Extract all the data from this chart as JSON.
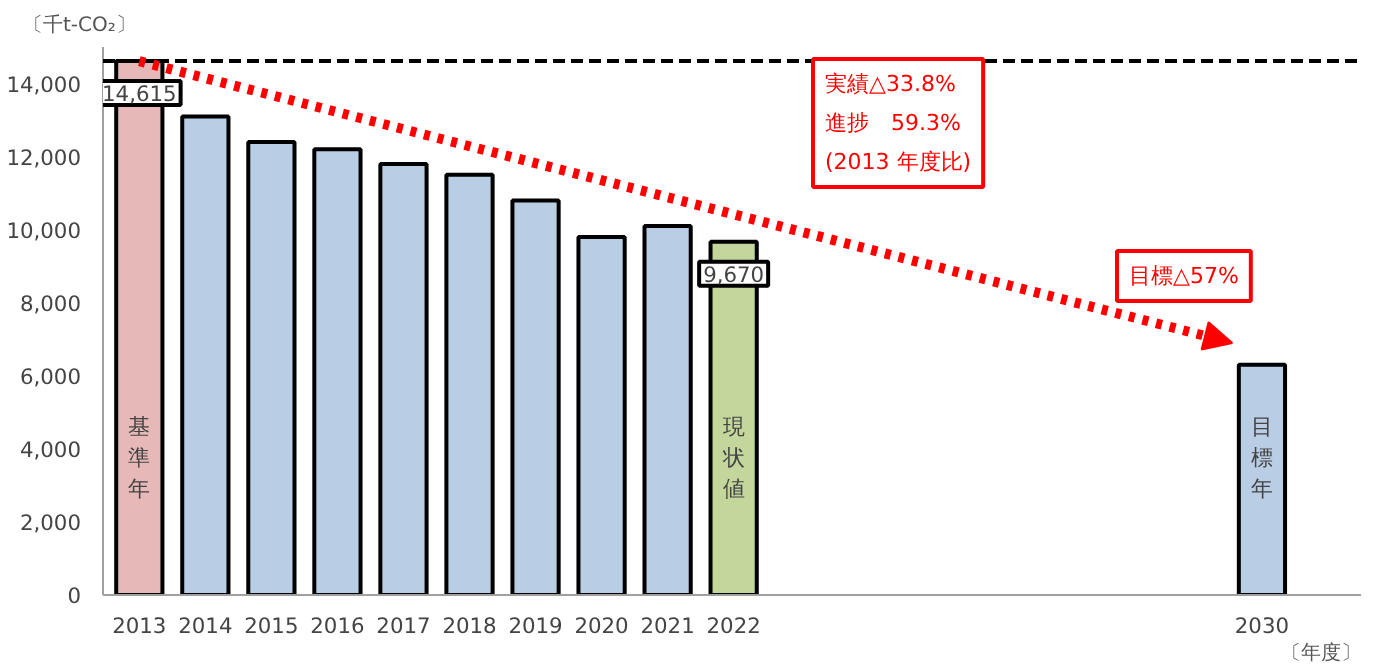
{
  "chart_data": {
    "type": "bar",
    "categories": [
      "2013",
      "2014",
      "2015",
      "2016",
      "2017",
      "2018",
      "2019",
      "2020",
      "2021",
      "2022",
      null,
      null,
      null,
      null,
      null,
      null,
      null,
      "2030"
    ],
    "values": [
      14615,
      13100,
      12400,
      12200,
      11800,
      11500,
      10800,
      9800,
      10100,
      9670,
      null,
      null,
      null,
      null,
      null,
      null,
      null,
      6300
    ],
    "colors": [
      "#e6b9b8",
      "#b9cde5",
      "#b9cde5",
      "#b9cde5",
      "#b9cde5",
      "#b9cde5",
      "#b9cde5",
      "#b9cde5",
      "#b9cde5",
      "#c3d69b",
      null,
      null,
      null,
      null,
      null,
      null,
      null,
      "#b9cde5"
    ],
    "value_labels": [
      "14,615",
      null,
      null,
      null,
      null,
      null,
      null,
      null,
      null,
      "9,670",
      null,
      null,
      null,
      null,
      null,
      null,
      null,
      null
    ],
    "ylabel": "〔千t-CO₂〕",
    "xlabel": "〔年度〕",
    "ylim": [
      0,
      15000
    ],
    "yticks": [
      0,
      {
        "value": 2000,
        "label": "2,000"
      },
      {
        "value": 4000,
        "label": "4,000"
      },
      {
        "value": 6000,
        "label": "6,000"
      },
      {
        "value": 8000,
        "label": "8,000"
      },
      {
        "value": 10000,
        "label": "10,000"
      },
      {
        "value": 12000,
        "label": "12,000"
      },
      {
        "value": 14000,
        "label": "14,000"
      }
    ],
    "ref_lines": [
      {
        "axis": "y",
        "value": 14615,
        "color": "#000000",
        "line_style": "dashed"
      }
    ],
    "annotations": [
      "基準年",
      "現状値",
      "目標年",
      "実績△33.8%\n進捗　59.3%\n(2013 年度比)",
      "目標△57%"
    ],
    "grid": false
  }
}
